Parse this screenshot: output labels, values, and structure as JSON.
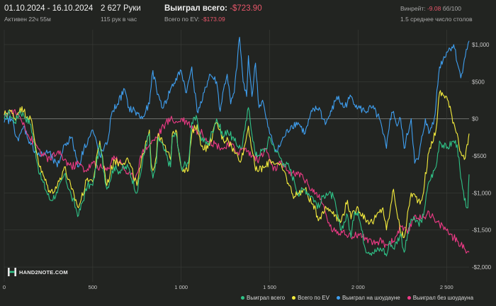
{
  "header": {
    "date_range": "01.10.2024 - 16.10.2024",
    "active": "Активен 22ч 55м",
    "hands": "2 627 Руки",
    "hands_per_hour": "115 рук в час",
    "won_total_label": "Выиграл всего:",
    "won_total_value": "-$723.90",
    "ev_label": "Всего по EV:",
    "ev_value": "-$173.09",
    "winrate_label": "Винрейт:",
    "winrate_value": "-9.08",
    "winrate_unit": "бб/100",
    "tables": "1.5 среднее число столов"
  },
  "logo": {
    "text": "HAND2NOTE.COM"
  },
  "colors": {
    "background": "#222421",
    "grid": "#3a3c38",
    "zero_line": "#7a7c78",
    "negative": "#e8566a",
    "won_total": "#2fc287",
    "ev": "#f4ec3c",
    "showdown": "#3f9ff0",
    "non_showdown": "#ee3a86"
  },
  "chart_data": {
    "type": "line",
    "title": "",
    "xlabel": "",
    "ylabel": "",
    "xlim": [
      0,
      2627
    ],
    "ylim": [
      -2200,
      1200
    ],
    "x_ticks": [
      0,
      500,
      1000,
      1500,
      2000,
      2500
    ],
    "x_tick_labels": [
      "0",
      "500",
      "1 000",
      "1 500",
      "2 000",
      "2 500"
    ],
    "y_ticks": [
      1000,
      500,
      0,
      -500,
      -1000,
      -1500,
      -2000
    ],
    "y_tick_labels": [
      "$1,000",
      "$500",
      "$0",
      "-$500",
      "-$1,000",
      "-$1,500",
      "-$2,000"
    ],
    "series": [
      {
        "name": "Выиграл всего",
        "color": "#2fc287",
        "x": [
          0,
          30,
          60,
          90,
          110,
          150,
          200,
          260,
          300,
          340,
          380,
          420,
          470,
          500,
          540,
          580,
          620,
          640,
          700,
          750,
          800,
          820,
          830,
          840,
          860,
          870,
          900,
          940,
          950,
          970,
          1000,
          1040,
          1060,
          1090,
          1110,
          1150,
          1200,
          1240,
          1260,
          1300,
          1340,
          1360,
          1380,
          1420,
          1480,
          1500,
          1540,
          1580,
          1610,
          1640,
          1660,
          1700,
          1740,
          1780,
          1800,
          1820,
          1860,
          1900,
          1940,
          1960,
          1980,
          2000,
          2040,
          2080,
          2140,
          2160,
          2180,
          2200,
          2240,
          2260,
          2300,
          2340,
          2360,
          2400,
          2440,
          2460,
          2500,
          2540,
          2560,
          2580,
          2600,
          2620,
          2627
        ],
        "values": [
          0,
          80,
          -50,
          100,
          50,
          -80,
          -750,
          -1100,
          -1000,
          -750,
          -1050,
          -1300,
          -900,
          -900,
          -350,
          -950,
          -650,
          -700,
          -650,
          -1000,
          -350,
          -200,
          -700,
          -800,
          -600,
          -250,
          -400,
          -650,
          -250,
          -200,
          -650,
          -600,
          -50,
          0,
          -250,
          -350,
          0,
          -250,
          -150,
          -300,
          -400,
          -150,
          150,
          -500,
          -400,
          -250,
          -450,
          -600,
          -650,
          -850,
          -1000,
          -950,
          -1050,
          -1200,
          -1050,
          -1000,
          -1050,
          -1500,
          -1300,
          -1600,
          -1250,
          -1250,
          -1750,
          -1800,
          -1750,
          -1850,
          -1650,
          -1750,
          -1550,
          -1800,
          -1350,
          -1400,
          -1400,
          -850,
          -650,
          -300,
          -400,
          -300,
          -350,
          -800,
          -1100,
          -1200,
          -750
        ]
      },
      {
        "name": "Всего по EV",
        "color": "#f4ec3c",
        "x": [
          0,
          30,
          60,
          90,
          110,
          150,
          200,
          260,
          300,
          340,
          380,
          420,
          470,
          500,
          540,
          580,
          620,
          640,
          700,
          750,
          800,
          820,
          830,
          840,
          860,
          870,
          900,
          940,
          950,
          970,
          1000,
          1040,
          1060,
          1090,
          1110,
          1150,
          1200,
          1240,
          1260,
          1300,
          1340,
          1360,
          1380,
          1420,
          1480,
          1500,
          1540,
          1580,
          1610,
          1640,
          1660,
          1700,
          1740,
          1780,
          1800,
          1820,
          1860,
          1900,
          1940,
          1960,
          1980,
          2000,
          2040,
          2080,
          2140,
          2160,
          2180,
          2200,
          2240,
          2260,
          2300,
          2340,
          2360,
          2400,
          2440,
          2460,
          2500,
          2540,
          2560,
          2580,
          2600,
          2620,
          2627
        ],
        "values": [
          50,
          120,
          0,
          150,
          100,
          0,
          -650,
          -1000,
          -900,
          -650,
          -950,
          -1200,
          -800,
          -850,
          -300,
          -900,
          -550,
          -600,
          -550,
          -900,
          -300,
          -150,
          -600,
          -700,
          -500,
          -200,
          -350,
          -550,
          -200,
          -150,
          -650,
          -700,
          -200,
          -80,
          -350,
          -400,
          -50,
          -300,
          -250,
          -450,
          -550,
          -350,
          -100,
          -700,
          -650,
          -550,
          -600,
          -700,
          -900,
          -1050,
          -1000,
          -950,
          -1150,
          -1350,
          -1250,
          -1200,
          -1250,
          -1400,
          -1100,
          -1350,
          -1250,
          -1200,
          -1350,
          -1400,
          -1200,
          -1500,
          -1250,
          -950,
          -1550,
          -1600,
          -1000,
          -1100,
          -1100,
          -450,
          -150,
          350,
          300,
          -50,
          -200,
          -450,
          -550,
          -350,
          -200
        ]
      },
      {
        "name": "Выиграл на шоудауне",
        "color": "#3f9ff0",
        "x": [
          0,
          40,
          80,
          110,
          150,
          200,
          250,
          300,
          340,
          380,
          420,
          450,
          480,
          500,
          540,
          580,
          610,
          640,
          680,
          700,
          740,
          780,
          820,
          840,
          860,
          880,
          900,
          940,
          1000,
          1030,
          1060,
          1090,
          1120,
          1160,
          1200,
          1220,
          1240,
          1260,
          1280,
          1300,
          1330,
          1350,
          1370,
          1380,
          1400,
          1420,
          1440,
          1460,
          1480,
          1500,
          1540,
          1580,
          1620,
          1660,
          1700,
          1740,
          1780,
          1800,
          1820,
          1850,
          1880,
          1920,
          1960,
          2000,
          2040,
          2080,
          2120,
          2140,
          2160,
          2180,
          2200,
          2220,
          2240,
          2260,
          2300,
          2320,
          2340,
          2380,
          2400,
          2430,
          2460,
          2500,
          2540,
          2580,
          2600,
          2627
        ],
        "values": [
          -50,
          0,
          -300,
          -100,
          -350,
          -500,
          -450,
          -650,
          -350,
          -250,
          -650,
          -400,
          -250,
          -150,
          -500,
          -350,
          100,
          200,
          400,
          150,
          100,
          0,
          200,
          650,
          400,
          250,
          150,
          400,
          650,
          350,
          700,
          100,
          250,
          600,
          500,
          100,
          400,
          600,
          200,
          350,
          1100,
          500,
          300,
          850,
          300,
          750,
          150,
          250,
          0,
          -200,
          -450,
          -250,
          -100,
          -50,
          -200,
          100,
          150,
          0,
          -50,
          100,
          300,
          150,
          300,
          150,
          100,
          150,
          0,
          -200,
          -400,
          0,
          100,
          -100,
          0,
          -400,
          0,
          -600,
          -550,
          0,
          -200,
          0,
          700,
          900,
          1000,
          550,
          800,
          1050
        ]
      },
      {
        "name": "Выиграл без шоудауна",
        "color": "#ee3a86",
        "x": [
          0,
          40,
          80,
          110,
          140,
          180,
          220,
          260,
          300,
          340,
          380,
          420,
          460,
          500,
          540,
          580,
          620,
          660,
          700,
          740,
          780,
          820,
          860,
          900,
          940,
          980,
          1000,
          1040,
          1080,
          1120,
          1160,
          1200,
          1240,
          1280,
          1320,
          1360,
          1400,
          1440,
          1480,
          1520,
          1560,
          1600,
          1640,
          1680,
          1720,
          1760,
          1800,
          1820,
          1840,
          1880,
          1920,
          1960,
          2000,
          2040,
          2080,
          2120,
          2160,
          2200,
          2240,
          2280,
          2320,
          2360,
          2400,
          2440,
          2480,
          2520,
          2560,
          2580,
          2600,
          2627
        ],
        "values": [
          50,
          100,
          50,
          -50,
          -250,
          -350,
          -500,
          -550,
          -450,
          -550,
          -650,
          -600,
          -700,
          -600,
          -650,
          -700,
          -500,
          -600,
          -750,
          -800,
          -450,
          -350,
          -250,
          -100,
          0,
          -50,
          0,
          -50,
          -150,
          -200,
          -300,
          -350,
          -400,
          -350,
          -450,
          -400,
          -500,
          -550,
          -400,
          -700,
          -600,
          -700,
          -750,
          -750,
          -900,
          -1000,
          -1150,
          -1300,
          -1450,
          -1550,
          -1500,
          -1600,
          -1550,
          -1600,
          -1700,
          -1650,
          -1700,
          -1650,
          -1450,
          -1550,
          -1300,
          -1350,
          -1250,
          -1400,
          -1450,
          -1550,
          -1650,
          -1700,
          -1750,
          -1800
        ]
      }
    ]
  }
}
